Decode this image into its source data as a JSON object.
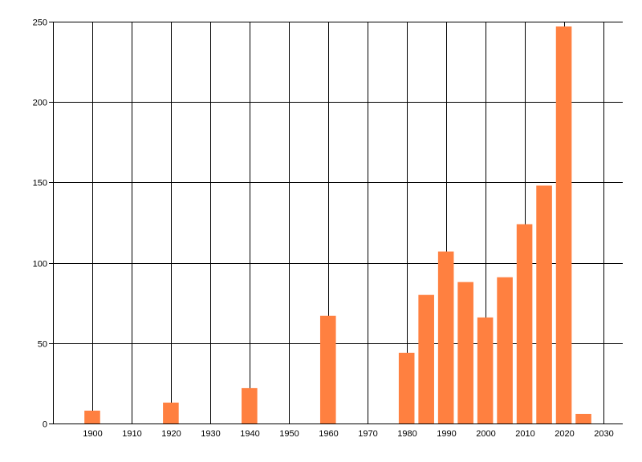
{
  "chart_data": {
    "type": "bar",
    "title": "",
    "xlabel": "",
    "ylabel": "",
    "x": [
      1900,
      1920,
      1940,
      1960,
      1980,
      1985,
      1990,
      1995,
      2000,
      2005,
      2010,
      2015,
      2020,
      2025
    ],
    "values": [
      8,
      13,
      22,
      67,
      44,
      80,
      107,
      88,
      66,
      91,
      124,
      148,
      247,
      6
    ],
    "xlim": [
      1890,
      2035
    ],
    "ylim": [
      0,
      250
    ],
    "xticks": [
      1900,
      1910,
      1920,
      1930,
      1940,
      1950,
      1960,
      1970,
      1980,
      1990,
      2000,
      2010,
      2020,
      2030
    ],
    "yticks": [
      0,
      50,
      100,
      150,
      200,
      250
    ],
    "bar_width_years": 4,
    "grid": true,
    "legend": "none",
    "bar_color": "#FF8040",
    "grid_color": "#000000"
  }
}
